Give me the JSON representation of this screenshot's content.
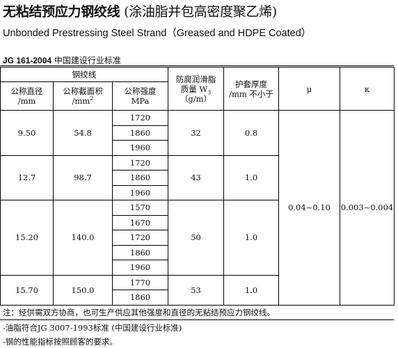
{
  "title": {
    "bold": "无粘结预应力钢绞线",
    "paren": "(涂油脂并包高密度聚乙烯)"
  },
  "subtitle": "Unbonded Prestressing Steel Strand（Greased and HDPE Coated）",
  "standard": {
    "code": "JG 161-2004",
    "text": "中国建设行业标准"
  },
  "table": {
    "group_header": "钢绞线",
    "headers": {
      "diameter": "公称直径",
      "diameter_unit": "/mm",
      "area": "公称截面积",
      "area_unit": "/mm",
      "area_sup": "2",
      "strength": "公称强度",
      "strength_unit": "MPa",
      "grease": "防腐润滑脂",
      "grease_mass": "质量 W",
      "grease_sub": "3",
      "grease_unit": "（g/m）",
      "sheath": "护套厚度",
      "sheath_unit": "/mm 不小于",
      "mu": "μ",
      "kappa": "κ"
    },
    "rows": [
      {
        "diameter": "9.50",
        "area": "54.8",
        "strengths": [
          "1720",
          "1860",
          "1960"
        ],
        "grease": "32",
        "sheath": "0.8"
      },
      {
        "diameter": "12.7",
        "area": "98.7",
        "strengths": [
          "1720",
          "1860",
          "1960"
        ],
        "grease": "43",
        "sheath": "1.0"
      },
      {
        "diameter": "15.20",
        "area": "140.0",
        "strengths": [
          "1570",
          "1670",
          "1720",
          "1860",
          "1960"
        ],
        "grease": "50",
        "sheath": "1.0"
      },
      {
        "diameter": "15.70",
        "area": "150.0",
        "strengths": [
          "1770",
          "1860"
        ],
        "grease": "53",
        "sheath": "1.0"
      }
    ],
    "mu_value": "0.04~0.10",
    "kappa_value": "0.003~0.004"
  },
  "note": "注：经供需双方协商，也可生产供应其他强度和直径的无粘结预应力钢绞线。",
  "bullets": [
    "-油脂符合JG 3007-1993标准 (中国建设行业标准)",
    "-钢的性能指标按照顾客的要求。"
  ]
}
